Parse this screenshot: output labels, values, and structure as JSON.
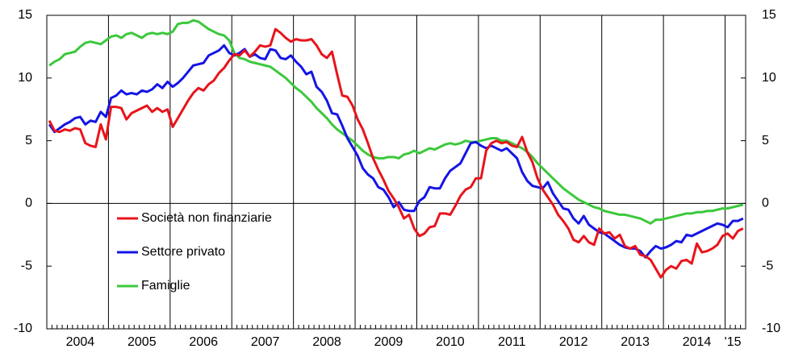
{
  "chart_data": {
    "type": "line",
    "categories": [
      null,
      null,
      null,
      null,
      null,
      null,
      "2004",
      null,
      null,
      null,
      null,
      null,
      null,
      null,
      null,
      null,
      null,
      null,
      "2005",
      null,
      null,
      null,
      null,
      null,
      null,
      null,
      null,
      null,
      null,
      null,
      "2006",
      null,
      null,
      null,
      null,
      null,
      null,
      null,
      null,
      null,
      null,
      null,
      "2007",
      null,
      null,
      null,
      null,
      null,
      null,
      null,
      null,
      null,
      null,
      null,
      "2008",
      null,
      null,
      null,
      null,
      null,
      null,
      null,
      null,
      null,
      null,
      null,
      "2009",
      null,
      null,
      null,
      null,
      null,
      null,
      null,
      null,
      null,
      null,
      null,
      "2010",
      null,
      null,
      null,
      null,
      null,
      null,
      null,
      null,
      null,
      null,
      null,
      "2011",
      null,
      null,
      null,
      null,
      null,
      null,
      null,
      null,
      null,
      null,
      null,
      "2012",
      null,
      null,
      null,
      null,
      null,
      null,
      null,
      null,
      null,
      null,
      null,
      "2013",
      null,
      null,
      null,
      null,
      null,
      null,
      null,
      null,
      null,
      null,
      null,
      "2014",
      null,
      null,
      null,
      null,
      null,
      null,
      "'15",
      null,
      null
    ],
    "series": [
      {
        "name": "Società non finanziarie",
        "color": "#e8141b",
        "values": [
          6.6,
          5.8,
          5.7,
          5.9,
          5.8,
          6.0,
          5.9,
          4.8,
          4.6,
          4.5,
          6.3,
          5.1,
          7.7,
          7.7,
          7.6,
          6.7,
          7.2,
          7.4,
          7.6,
          7.8,
          7.3,
          7.6,
          7.3,
          7.5,
          6.1,
          6.8,
          7.5,
          8.2,
          8.8,
          9.2,
          9.0,
          9.5,
          9.8,
          10.4,
          10.8,
          11.4,
          11.9,
          11.8,
          12.2,
          11.7,
          12.1,
          12.6,
          12.5,
          12.6,
          13.9,
          13.6,
          13.2,
          12.9,
          13.1,
          13.0,
          13.0,
          13.1,
          12.6,
          11.9,
          11.6,
          12.1,
          10.3,
          8.6,
          8.5,
          7.8,
          6.7,
          5.9,
          4.8,
          3.6,
          2.7,
          1.9,
          1.0,
          0.4,
          -0.3,
          -1.2,
          -0.9,
          -2.0,
          -2.6,
          -2.4,
          -1.9,
          -1.8,
          -0.8,
          -0.8,
          -0.9,
          -0.2,
          0.6,
          1.1,
          1.3,
          2.0,
          2.0,
          4.2,
          4.8,
          5.0,
          4.8,
          4.9,
          4.6,
          4.5,
          5.3,
          4.1,
          3.3,
          2.0,
          1.1,
          0.5,
          -0.1,
          -0.9,
          -1.4,
          -2.0,
          -2.9,
          -3.1,
          -2.6,
          -3.1,
          -3.3,
          -2.0,
          -2.4,
          -2.3,
          -2.8,
          -2.5,
          -3.4,
          -3.6,
          -3.4,
          -4.1,
          -4.2,
          -4.5,
          -5.2,
          -5.9,
          -5.3,
          -5.0,
          -5.2,
          -4.6,
          -4.5,
          -4.8,
          -3.2,
          -3.9,
          -3.8,
          -3.6,
          -3.3,
          -2.6,
          -2.4,
          -2.8,
          -2.2,
          -2.0
        ]
      },
      {
        "name": "Settore privato",
        "color": "#1414e6",
        "values": [
          6.3,
          5.7,
          6.0,
          6.3,
          6.5,
          6.8,
          6.9,
          6.3,
          6.6,
          6.5,
          7.3,
          6.9,
          8.4,
          8.6,
          9.0,
          8.7,
          8.8,
          8.7,
          9.0,
          8.9,
          9.1,
          9.5,
          9.2,
          9.7,
          9.3,
          9.6,
          10.0,
          10.5,
          11.0,
          11.1,
          11.2,
          11.8,
          12.0,
          12.2,
          12.6,
          12.0,
          11.8,
          12.0,
          12.3,
          11.7,
          11.9,
          11.6,
          11.5,
          12.3,
          12.2,
          11.6,
          11.5,
          11.8,
          11.3,
          10.9,
          10.3,
          10.5,
          9.3,
          8.9,
          8.2,
          7.2,
          7.1,
          6.2,
          5.2,
          4.5,
          3.8,
          2.8,
          2.3,
          2.0,
          1.3,
          1.1,
          0.5,
          -0.3,
          0.1,
          -0.5,
          -0.6,
          -0.6,
          0.2,
          0.5,
          1.3,
          1.2,
          1.2,
          2.0,
          2.6,
          2.9,
          3.2,
          4.0,
          4.8,
          4.9,
          4.6,
          4.4,
          4.6,
          4.4,
          4.2,
          4.4,
          4.0,
          3.6,
          2.5,
          1.8,
          1.4,
          1.3,
          1.2,
          1.7,
          0.8,
          0.2,
          -0.4,
          -0.5,
          -1.2,
          -1.6,
          -1.0,
          -1.7,
          -2.0,
          -2.3,
          -2.4,
          -2.7,
          -3.0,
          -3.3,
          -3.5,
          -3.6,
          -3.6,
          -3.8,
          -4.3,
          -3.8,
          -3.4,
          -3.6,
          -3.5,
          -3.3,
          -3.0,
          -3.1,
          -2.5,
          -2.6,
          -2.4,
          -2.2,
          -2.0,
          -1.8,
          -1.6,
          -1.7,
          -1.9,
          -1.4,
          -1.4,
          -1.2
        ]
      },
      {
        "name": "Famiglie",
        "color": "#3cc83c",
        "values": [
          11.0,
          11.3,
          11.5,
          11.9,
          12.0,
          12.1,
          12.5,
          12.8,
          12.9,
          12.8,
          12.7,
          13.0,
          13.3,
          13.4,
          13.2,
          13.5,
          13.6,
          13.4,
          13.2,
          13.5,
          13.6,
          13.5,
          13.6,
          13.5,
          13.7,
          14.3,
          14.4,
          14.4,
          14.6,
          14.5,
          14.2,
          13.9,
          13.7,
          13.5,
          13.4,
          13.0,
          12.0,
          11.6,
          11.5,
          11.3,
          11.2,
          11.1,
          11.0,
          10.9,
          10.6,
          10.3,
          10.0,
          9.6,
          9.2,
          8.9,
          8.5,
          8.1,
          7.6,
          7.2,
          6.8,
          6.3,
          5.9,
          5.6,
          5.3,
          5.0,
          4.6,
          4.2,
          3.9,
          3.7,
          3.6,
          3.6,
          3.7,
          3.7,
          3.6,
          3.9,
          4.0,
          4.2,
          4.0,
          4.2,
          4.4,
          4.3,
          4.5,
          4.7,
          4.8,
          4.7,
          4.8,
          5.0,
          4.9,
          4.9,
          5.0,
          5.1,
          5.2,
          5.2,
          5.0,
          5.0,
          4.8,
          4.6,
          4.4,
          4.1,
          3.7,
          3.2,
          2.8,
          2.4,
          2.0,
          1.6,
          1.2,
          0.9,
          0.6,
          0.3,
          0.1,
          -0.1,
          -0.3,
          -0.4,
          -0.6,
          -0.7,
          -0.8,
          -0.9,
          -0.9,
          -1.0,
          -1.1,
          -1.2,
          -1.4,
          -1.6,
          -1.3,
          -1.3,
          -1.2,
          -1.1,
          -1.0,
          -0.9,
          -0.8,
          -0.8,
          -0.7,
          -0.7,
          -0.6,
          -0.6,
          -0.5,
          -0.4,
          -0.4,
          -0.3,
          -0.2,
          -0.1
        ]
      }
    ],
    "ylim": [
      -10,
      15
    ],
    "yticks": [
      -10,
      -5,
      0,
      5,
      10,
      15
    ],
    "y2lim": [
      -10,
      15
    ],
    "y2ticks": [
      -10,
      -5,
      0,
      5,
      10,
      15
    ],
    "grid": false,
    "legend": "lower left"
  }
}
